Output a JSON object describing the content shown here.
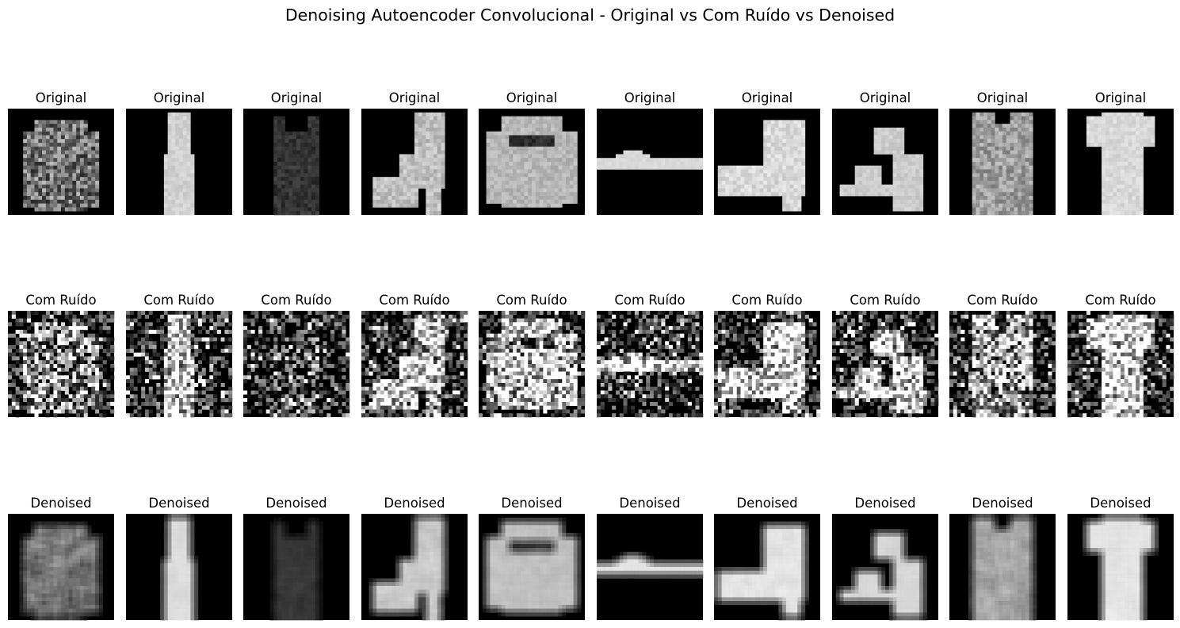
{
  "figure": {
    "suptitle": "Denoising Autoencoder Convolucional - Original vs Com Ruído vs Denoised",
    "background": "#ffffff",
    "rows": [
      {
        "key": "original",
        "label": "Original"
      },
      {
        "key": "noisy",
        "label": "Com Ruído"
      },
      {
        "key": "denoised",
        "label": "Denoised"
      }
    ],
    "samples": [
      {
        "subject": "long-sleeve patterned shirt",
        "shape": "shirt",
        "brightness": 0.45,
        "texture": 0.6
      },
      {
        "subject": "long dress",
        "shape": "dress",
        "brightness": 0.82,
        "texture": 0.1
      },
      {
        "subject": "dark sleeveless top",
        "shape": "tank",
        "brightness": 0.2,
        "texture": 0.15
      },
      {
        "subject": "high-heel strappy sandal",
        "shape": "heelboot",
        "brightness": 0.75,
        "texture": 0.2
      },
      {
        "subject": "long-sleeve sweater with chest stripe",
        "shape": "sweater",
        "brightness": 0.72,
        "texture": 0.15
      },
      {
        "subject": "flip-flop sandal",
        "shape": "flipflop",
        "brightness": 0.85,
        "texture": 0.05
      },
      {
        "subject": "ankle boot",
        "shape": "ankleboot",
        "brightness": 0.85,
        "texture": 0.15
      },
      {
        "subject": "high-heel sandal",
        "shape": "sandal",
        "brightness": 0.8,
        "texture": 0.1
      },
      {
        "subject": "sleeveless long top",
        "shape": "longtop",
        "brightness": 0.62,
        "texture": 0.3
      },
      {
        "subject": "short-sleeve dress",
        "shape": "tshirtdress",
        "brightness": 0.85,
        "texture": 0.1
      }
    ]
  }
}
